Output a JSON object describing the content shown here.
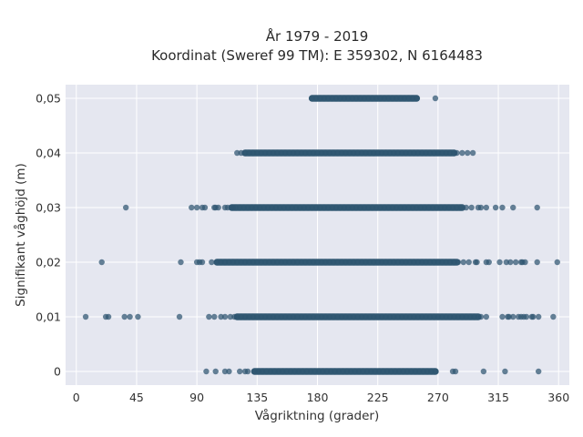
{
  "chart_data": {
    "type": "scatter",
    "title_lines": [
      "År 1979 - 2019",
      "Koordinat (Sweref 99 TM): E 359302, N 6164483"
    ],
    "xlabel": "Vågriktning (grader)",
    "ylabel": "Signifikant våghöjd (m)",
    "xlim": [
      -8,
      368
    ],
    "ylim": [
      -0.0025,
      0.0525
    ],
    "xticks": [
      0,
      45,
      90,
      135,
      180,
      225,
      270,
      315,
      360
    ],
    "xtick_labels": [
      "0",
      "45",
      "90",
      "135",
      "180",
      "225",
      "270",
      "315",
      "360"
    ],
    "yticks": [
      0,
      0.01,
      0.02,
      0.03,
      0.04,
      0.05
    ],
    "ytick_labels": [
      "0",
      "0,01",
      "0,02",
      "0,03",
      "0,04",
      "0,05"
    ],
    "grid": true,
    "marker_color": "#2e5570",
    "plot_background": "#e5e7f0",
    "bands": [
      {
        "y": 0.05,
        "dense": [
          176,
          254
        ],
        "outliers": [
          268
        ]
      },
      {
        "y": 0.04,
        "dense": [
          126,
          282
        ],
        "outliers": [
          120,
          123,
          284,
          288,
          292,
          296
        ]
      },
      {
        "y": 0.03,
        "dense": [
          116,
          288
        ],
        "outliers": [
          37,
          86,
          90,
          94,
          96,
          103,
          104,
          106,
          111,
          113,
          117,
          291,
          295,
          300,
          302,
          306,
          313,
          318,
          326,
          344
        ]
      },
      {
        "y": 0.02,
        "dense": [
          105,
          284
        ],
        "outliers": [
          19,
          78,
          90,
          92,
          94,
          101,
          285,
          289,
          293,
          298,
          299,
          306,
          308,
          316,
          321,
          324,
          328,
          332,
          333,
          335,
          344,
          359
        ]
      },
      {
        "y": 0.01,
        "dense": [
          120,
          300
        ],
        "outliers": [
          7,
          22,
          24,
          36,
          40,
          46,
          77,
          99,
          103,
          108,
          111,
          115,
          118,
          302,
          306,
          318,
          322,
          323,
          326,
          330,
          332,
          334,
          336,
          340,
          341,
          345,
          356
        ]
      },
      {
        "y": 0.0,
        "dense": [
          133,
          268
        ],
        "outliers": [
          97,
          104,
          111,
          114,
          122,
          126,
          128,
          281,
          283,
          304,
          320,
          345
        ]
      }
    ]
  }
}
